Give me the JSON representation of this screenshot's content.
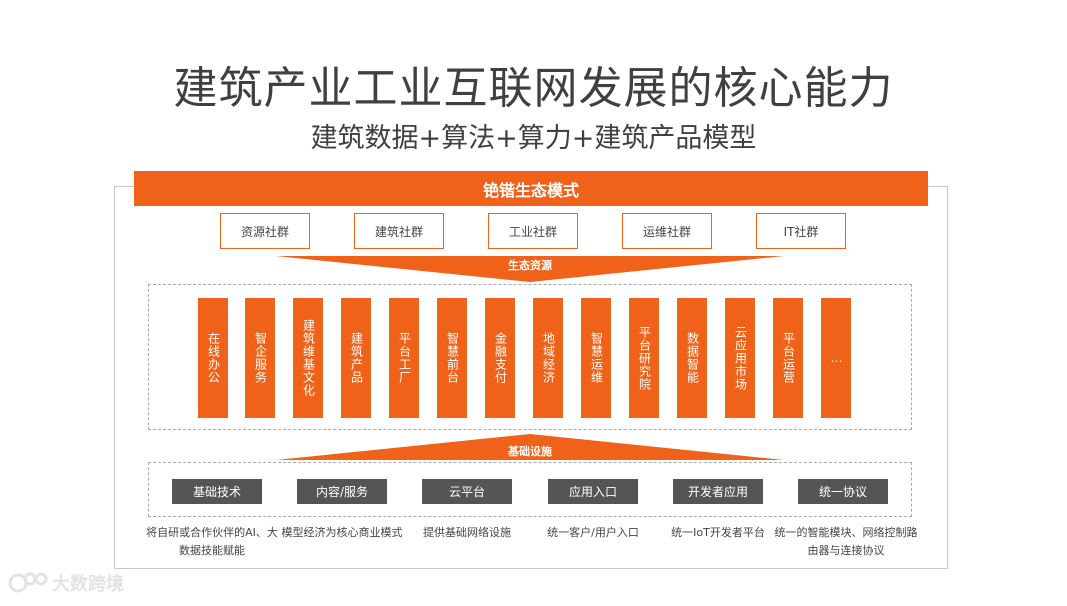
{
  "title": "建筑产业工业互联网发展的核心能力",
  "subtitle": "建筑数据+算法+算力+建筑产品模型",
  "header": "铯锴生态模式",
  "communities": [
    "资源社群",
    "建筑社群",
    "工业社群",
    "运维社群",
    "IT社群"
  ],
  "arrow_top_label": "生态资源",
  "pillars": [
    "在线办公",
    "智企服务",
    "建筑维基文化",
    "建筑产品",
    "平台工厂",
    "智慧前台",
    "金融支付",
    "地域经济",
    "智慧运维",
    "平台研究院",
    "数据智能",
    "云应用市场",
    "平台运营",
    "…"
  ],
  "arrow_bottom_label": "基础设施",
  "infra": [
    {
      "label": "基础技术",
      "desc": "将自研或合作伙伴的AI、大数据技能赋能"
    },
    {
      "label": "内容/服务",
      "desc": "模型经济为核心商业模式"
    },
    {
      "label": "云平台",
      "desc": "提供基础网络设施"
    },
    {
      "label": "应用入口",
      "desc": "统一客户/用户入口"
    },
    {
      "label": "开发者应用",
      "desc": "统一IoT开发者平台"
    },
    {
      "label": "统一协议",
      "desc": "统一的智能模块、网络控制路由器与连接协议"
    }
  ],
  "watermark": "大数跨境",
  "colors": {
    "accent": "#f0621a",
    "dark_button": "#555555"
  }
}
